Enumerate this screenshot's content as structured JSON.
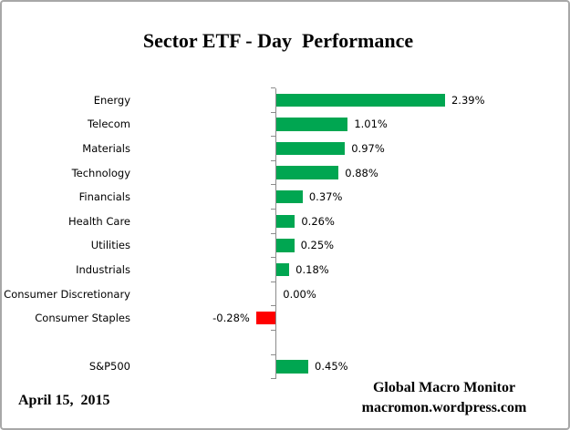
{
  "title": "Sector ETF - Day  Performance",
  "footer": {
    "date": "April 15,  2015",
    "brand_line1": "Global Macro Monitor",
    "brand_line2": "macromon.wordpress.com"
  },
  "colors": {
    "positive_bar": "#00a651",
    "negative_bar": "#ff0000",
    "axis": "#8c8c8c",
    "border": "#a8a8a8",
    "background": "#ffffff",
    "text": "#000000"
  },
  "chart_data": {
    "type": "bar",
    "orientation": "horizontal",
    "title": "Sector ETF - Day  Performance",
    "xlabel": "",
    "ylabel": "",
    "grid": false,
    "legend": false,
    "baseline": 0,
    "xlim": [
      -0.5,
      2.6
    ],
    "categories": [
      "Energy",
      "Telecom",
      "Materials",
      "Technology",
      "Financials",
      "Health Care",
      "Utilities",
      "Industrials",
      "Consumer Discretionary",
      "Consumer Staples",
      "",
      "S&P500"
    ],
    "values": [
      2.39,
      1.01,
      0.97,
      0.88,
      0.37,
      0.26,
      0.25,
      0.18,
      0.0,
      -0.28,
      null,
      0.45
    ],
    "value_labels": [
      "2.39%",
      "1.01%",
      "0.97%",
      "0.88%",
      "0.37%",
      "0.26%",
      "0.25%",
      "0.18%",
      "0.00%",
      "-0.28%",
      "",
      "0.45%"
    ]
  }
}
